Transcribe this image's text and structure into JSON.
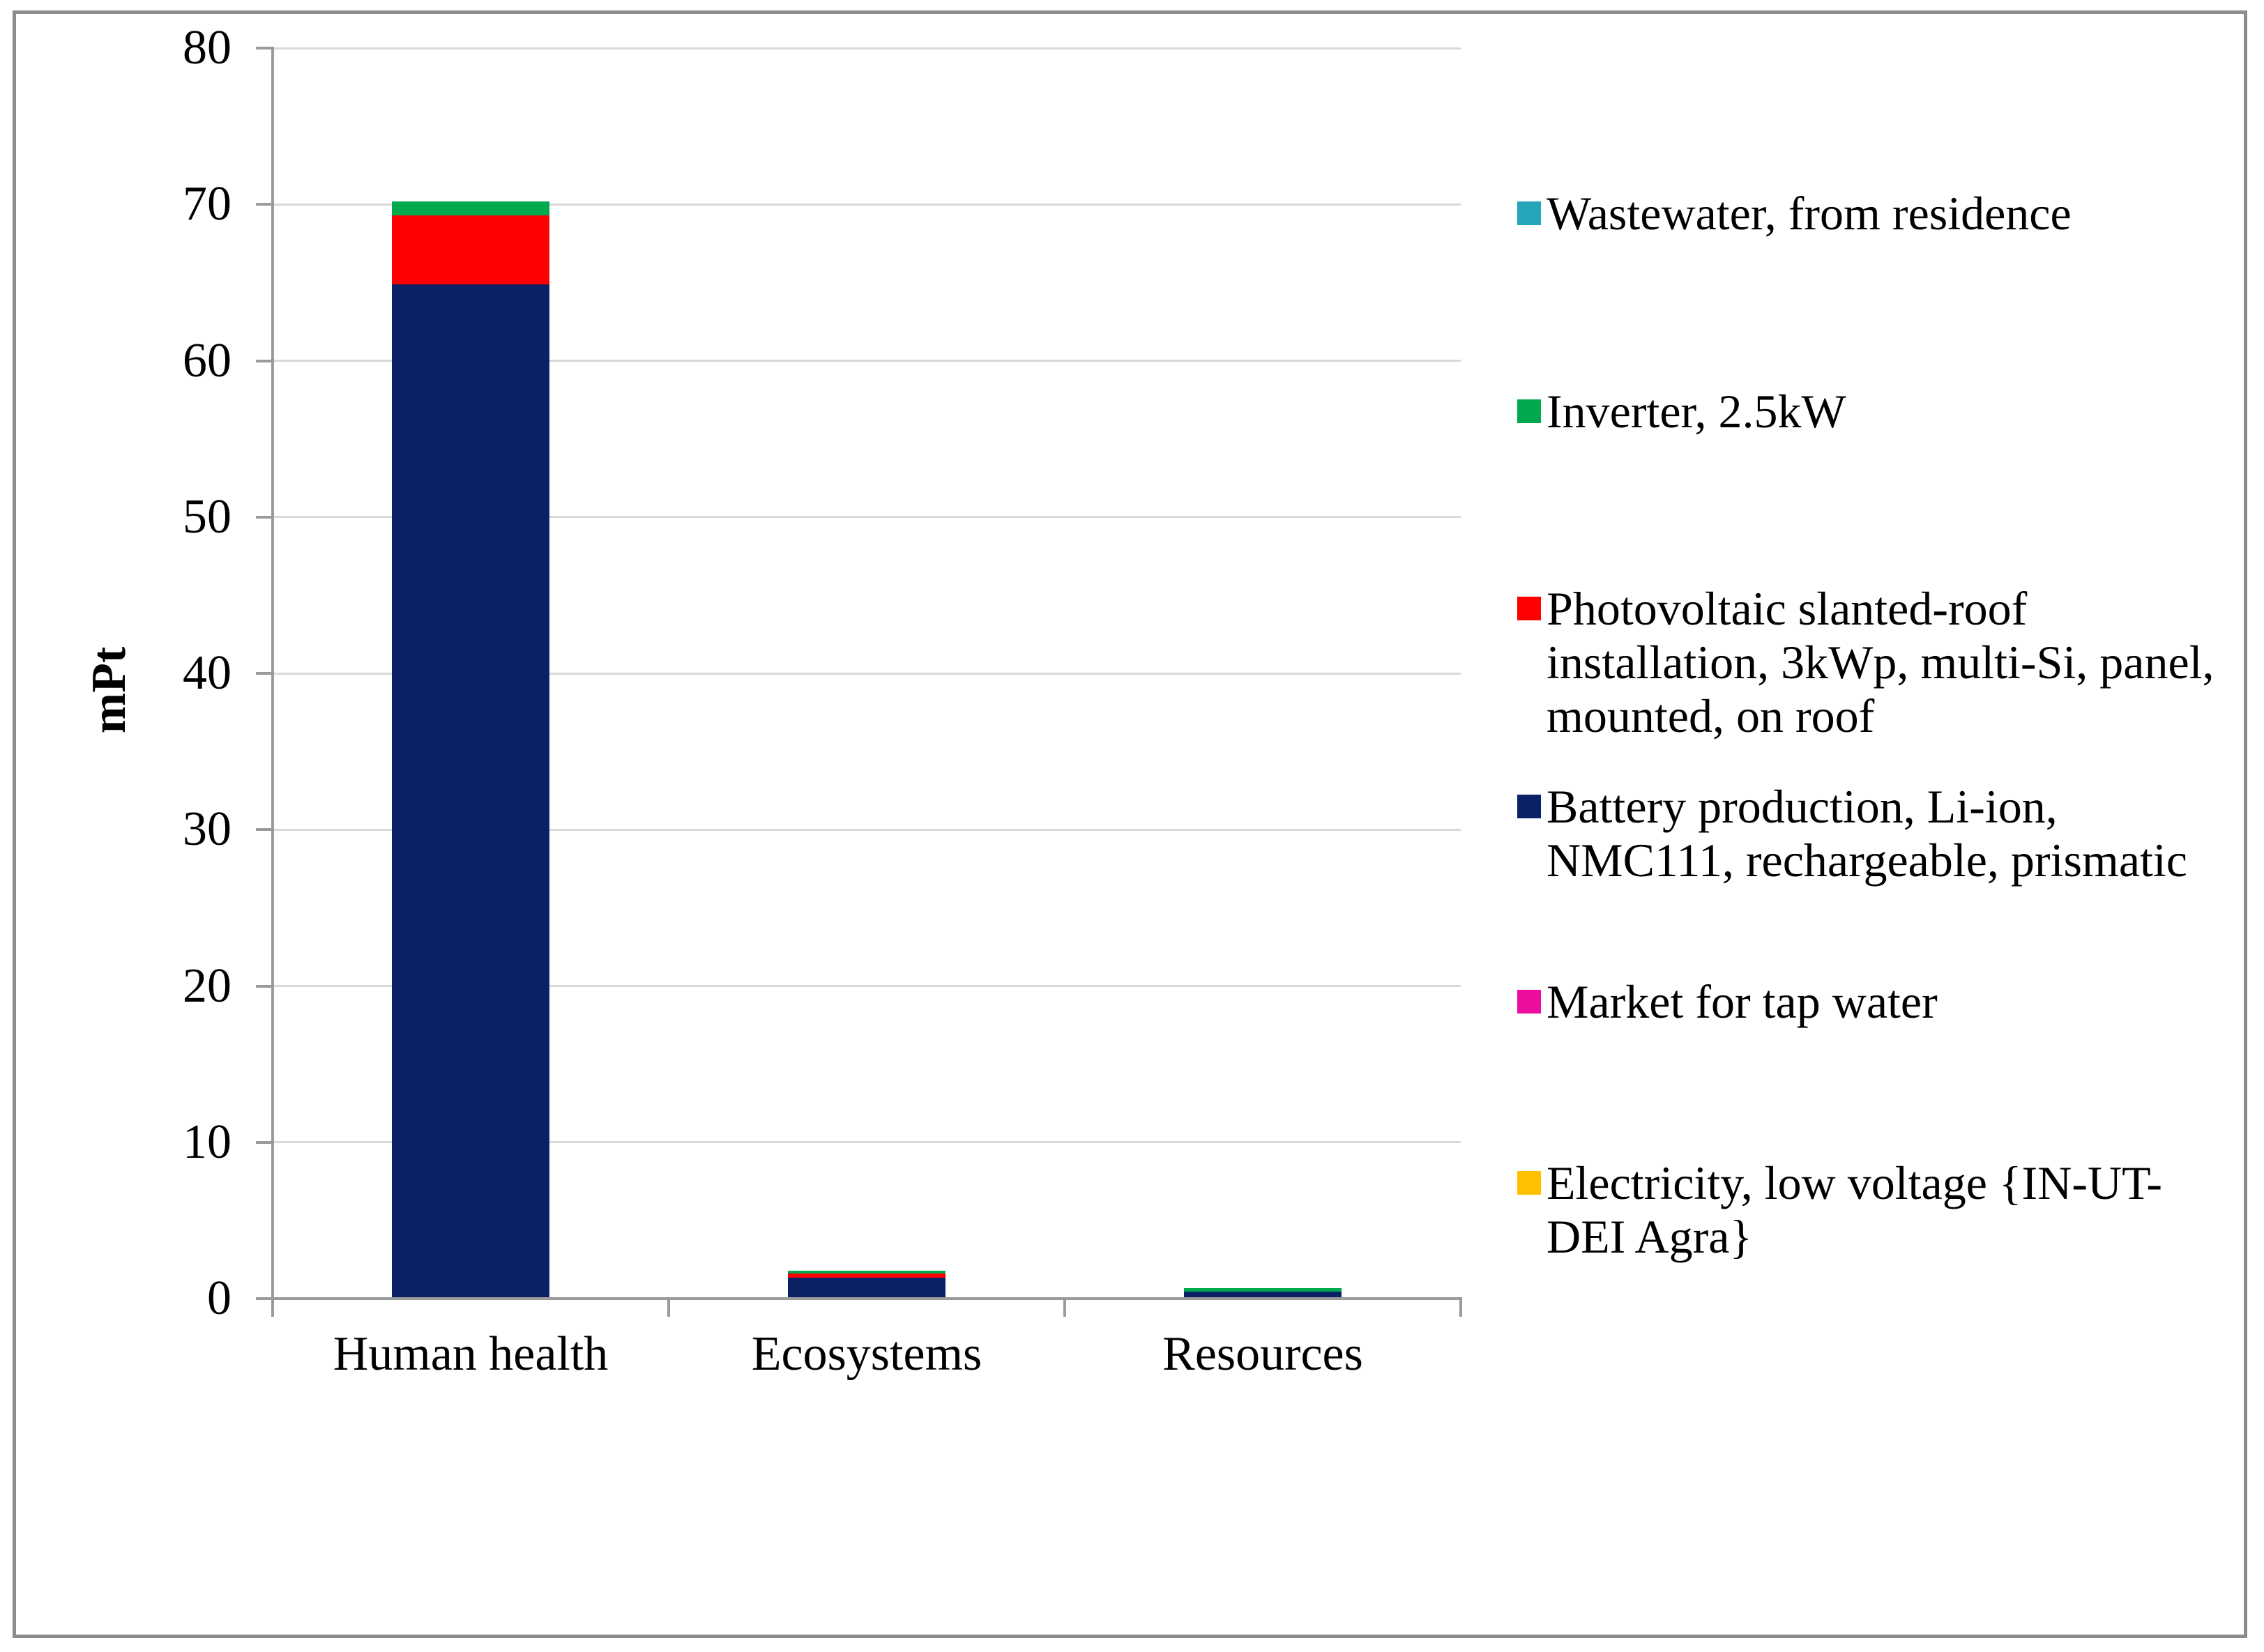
{
  "chart_data": {
    "type": "bar",
    "stacked": true,
    "title": "",
    "xlabel": "",
    "ylabel": "mPt",
    "ylim": [
      0,
      80
    ],
    "ytick_step": 10,
    "grid": "horizontal",
    "legend_position": "right",
    "categories": [
      "Human health",
      "Ecosystems",
      "Resources"
    ],
    "series": [
      {
        "name": "Wastewater, from residence",
        "color": "#26A5B8",
        "values": [
          0,
          0,
          0
        ]
      },
      {
        "name": "Inverter, 2.5kW",
        "color": "#00A84E",
        "values": [
          0.9,
          0.2,
          0.2
        ]
      },
      {
        "name": "Photovoltaic slanted-roof installation, 3kWp, multi-Si, panel, mounted, on roof",
        "color": "#FE0000",
        "values": [
          4.4,
          0.25,
          0
        ]
      },
      {
        "name": "Battery production, Li-ion, NMC111, rechargeable, prismatic",
        "color": "#0A2166",
        "values": [
          64.9,
          1.35,
          0.45
        ]
      },
      {
        "name": "Market for tap water",
        "color": "#EC0D9E",
        "values": [
          0,
          0,
          0
        ]
      },
      {
        "name": "Electricity, low voltage {IN-UT-DEI Agra}",
        "color": "#FFC000",
        "values": [
          0,
          0,
          0
        ]
      }
    ],
    "stack_note": "series stacked bottom-to-top in reverse legend order"
  },
  "style": {
    "background": "#FFFFFF",
    "frame_border_color": "#8C8C8C",
    "axis_color": "#9B9B9B",
    "gridline_color": "#D9D9D9",
    "text_color": "#000000"
  }
}
